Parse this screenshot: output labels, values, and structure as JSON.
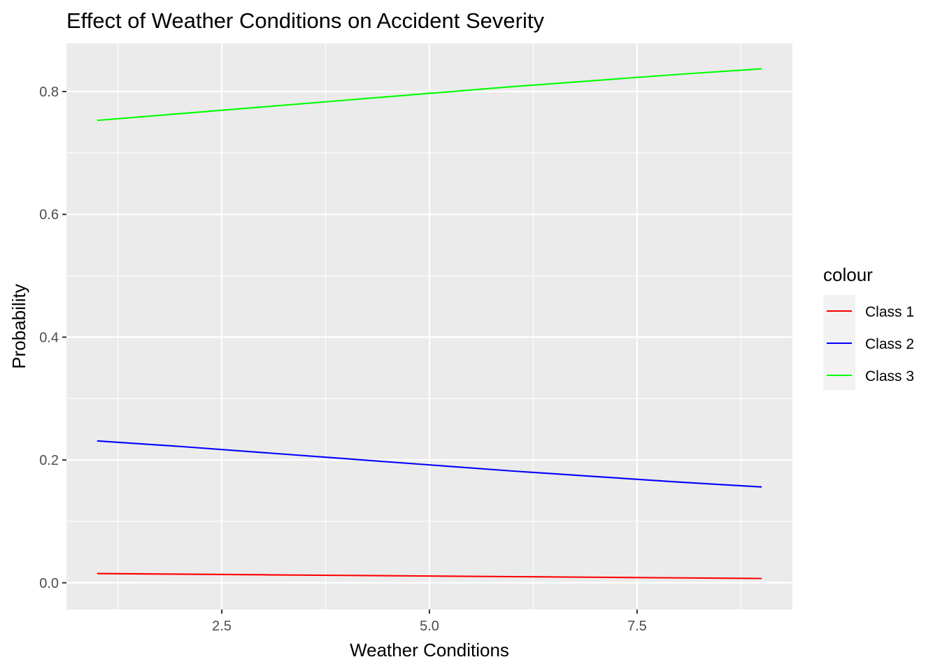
{
  "chart_data": {
    "type": "line",
    "title": "Effect of Weather Conditions on Accident Severity",
    "xlabel": "Weather Conditions",
    "ylabel": "Probability",
    "xlim": [
      0.63,
      9.37
    ],
    "ylim": [
      -0.0435,
      0.8785
    ],
    "x_ticks": [
      2.5,
      5.0,
      7.5
    ],
    "x_tick_labels": [
      "2.5",
      "5.0",
      "7.5"
    ],
    "x_minor_ticks": [
      1.25,
      3.75,
      6.25,
      8.75
    ],
    "y_ticks": [
      0.0,
      0.2,
      0.4,
      0.6,
      0.8
    ],
    "y_tick_labels": [
      "0.0",
      "0.2",
      "0.4",
      "0.6",
      "0.8"
    ],
    "y_minor_ticks": [
      0.1,
      0.3,
      0.5,
      0.7
    ],
    "grid": true,
    "legend": {
      "title": "colour",
      "position": "right"
    },
    "x": [
      1,
      2,
      3,
      4,
      5,
      6,
      7,
      8,
      9
    ],
    "series": [
      {
        "name": "Class 1",
        "color": "#FF0000",
        "values": [
          0.015,
          0.014,
          0.013,
          0.012,
          0.011,
          0.01,
          0.009,
          0.008,
          0.007
        ]
      },
      {
        "name": "Class 2",
        "color": "#0000FF",
        "values": [
          0.231,
          0.222,
          0.212,
          0.202,
          0.192,
          0.182,
          0.173,
          0.164,
          0.156
        ]
      },
      {
        "name": "Class 3",
        "color": "#00FF00",
        "values": [
          0.753,
          0.764,
          0.775,
          0.786,
          0.797,
          0.808,
          0.818,
          0.828,
          0.837
        ]
      }
    ]
  }
}
